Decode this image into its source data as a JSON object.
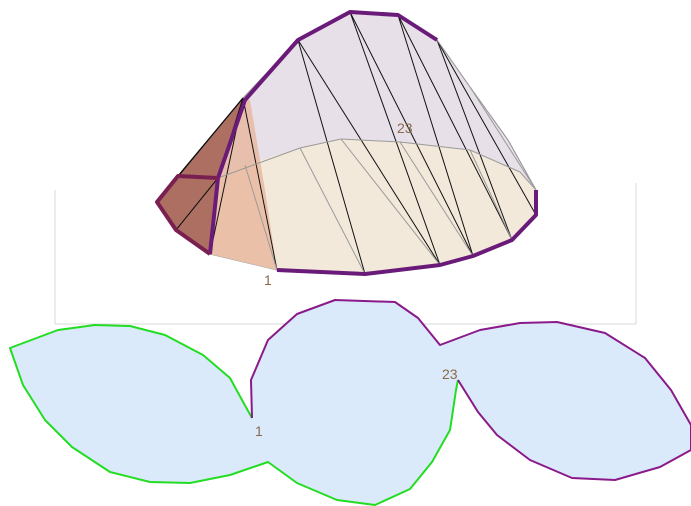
{
  "colors": {
    "background": "#ffffff",
    "frame": "#d8d8d8",
    "solid_fill_light": "#f5ead7",
    "solid_fill_warm": "#e8b59c",
    "solid_fill_dark": "#a15a4a",
    "upper_fill": "#e4dde6",
    "edge_dark": "#111111",
    "edge_light": "#9a9a9a",
    "seam": "#6a1a78",
    "seam_left": "#7a2050",
    "net_fill": "#dbeafb",
    "net_edge_left": "#22dd22",
    "net_edge_right": "#8a1a8a",
    "label": "#8a6a4a"
  },
  "solid": {
    "labels": {
      "start_vertex": "1",
      "end_vertex": "23"
    }
  },
  "net": {
    "labels": {
      "start_vertex": "1",
      "end_vertex": "23"
    }
  }
}
